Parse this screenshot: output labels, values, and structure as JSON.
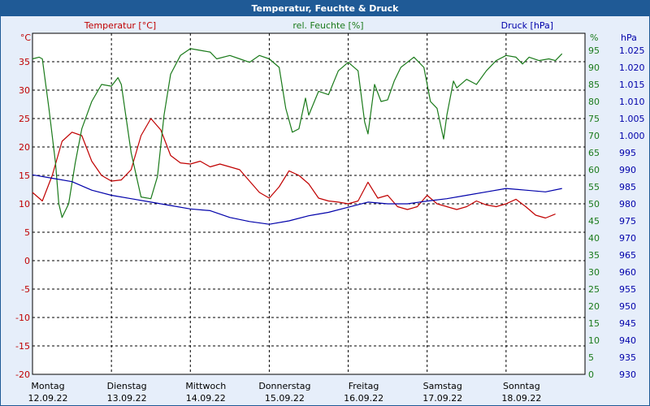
{
  "title": "Temperatur, Feuchte & Druck",
  "colors": {
    "temperature": "#c00000",
    "humidity": "#1a7a1a",
    "pressure": "#0000aa",
    "titlebar": "#1f5a96",
    "background": "#e6eefa"
  },
  "chart_data": {
    "type": "line",
    "title": "Temperatur, Feuchte & Druck",
    "grid": true,
    "x": {
      "range": [
        "12.09.22 00:00",
        "19.09.22 00:00"
      ],
      "days": [
        {
          "weekday": "Montag",
          "date": "12.09.22"
        },
        {
          "weekday": "Dienstag",
          "date": "13.09.22"
        },
        {
          "weekday": "Mittwoch",
          "date": "14.09.22"
        },
        {
          "weekday": "Donnerstag",
          "date": "15.09.22"
        },
        {
          "weekday": "Freitag",
          "date": "16.09.22"
        },
        {
          "weekday": "Samstag",
          "date": "17.09.22"
        },
        {
          "weekday": "Sonntag",
          "date": "18.09.22"
        }
      ]
    },
    "axes": {
      "temperature": {
        "label": "Temperatur [°C]",
        "unit": "°C",
        "range": [
          -20,
          40
        ],
        "ticks": [
          "-20",
          "-15",
          "-10",
          "-5",
          "0",
          "5",
          "10",
          "15",
          "20",
          "25",
          "30",
          "35"
        ]
      },
      "humidity": {
        "label": "rel. Feuchte [%]",
        "unit": "%",
        "range": [
          0,
          100
        ],
        "ticks": [
          "0",
          "5",
          "10",
          "15",
          "20",
          "25",
          "30",
          "35",
          "40",
          "45",
          "50",
          "55",
          "60",
          "65",
          "70",
          "75",
          "80",
          "85",
          "90",
          "95"
        ]
      },
      "pressure": {
        "label": "Druck [hPa]",
        "unit": "hPa",
        "range": [
          930,
          1030
        ],
        "ticks": [
          "930",
          "935",
          "940",
          "945",
          "950",
          "955",
          "960",
          "965",
          "970",
          "975",
          "980",
          "985",
          "990",
          "995",
          "1.000",
          "1.005",
          "1.010",
          "1.015",
          "1.020",
          "1.025"
        ]
      }
    },
    "series": [
      {
        "name": "Temperatur [°C]",
        "axis": "temperature",
        "points": [
          [
            "12.09.22 00:00",
            12.0
          ],
          [
            "12.09.22 03:00",
            10.5
          ],
          [
            "12.09.22 06:00",
            15.0
          ],
          [
            "12.09.22 09:00",
            21.0
          ],
          [
            "12.09.22 12:00",
            22.6
          ],
          [
            "12.09.22 15:00",
            22.0
          ],
          [
            "12.09.22 18:00",
            17.5
          ],
          [
            "12.09.22 21:00",
            15.0
          ],
          [
            "13.09.22 00:00",
            14.0
          ],
          [
            "13.09.22 03:00",
            14.2
          ],
          [
            "13.09.22 06:00",
            16.0
          ],
          [
            "13.09.22 09:00",
            22.0
          ],
          [
            "13.09.22 12:00",
            25.0
          ],
          [
            "13.09.22 15:00",
            23.0
          ],
          [
            "13.09.22 18:00",
            18.5
          ],
          [
            "13.09.22 21:00",
            17.2
          ],
          [
            "14.09.22 00:00",
            17.0
          ],
          [
            "14.09.22 03:00",
            17.5
          ],
          [
            "14.09.22 06:00",
            16.5
          ],
          [
            "14.09.22 09:00",
            17.0
          ],
          [
            "14.09.22 12:00",
            16.5
          ],
          [
            "14.09.22 15:00",
            16.0
          ],
          [
            "14.09.22 18:00",
            14.0
          ],
          [
            "14.09.22 21:00",
            12.0
          ],
          [
            "15.09.22 00:00",
            11.0
          ],
          [
            "15.09.22 03:00",
            13.0
          ],
          [
            "15.09.22 06:00",
            15.8
          ],
          [
            "15.09.22 09:00",
            15.0
          ],
          [
            "15.09.22 12:00",
            13.5
          ],
          [
            "15.09.22 15:00",
            11.0
          ],
          [
            "15.09.22 18:00",
            10.5
          ],
          [
            "15.09.22 21:00",
            10.3
          ],
          [
            "16.09.22 00:00",
            10.0
          ],
          [
            "16.09.22 03:00",
            10.5
          ],
          [
            "16.09.22 06:00",
            13.8
          ],
          [
            "16.09.22 09:00",
            11.0
          ],
          [
            "16.09.22 12:00",
            11.5
          ],
          [
            "16.09.22 15:00",
            9.5
          ],
          [
            "16.09.22 18:00",
            9.0
          ],
          [
            "16.09.22 21:00",
            9.5
          ],
          [
            "17.09.22 00:00",
            11.5
          ],
          [
            "17.09.22 03:00",
            10.0
          ],
          [
            "17.09.22 06:00",
            9.5
          ],
          [
            "17.09.22 09:00",
            9.0
          ],
          [
            "17.09.22 12:00",
            9.5
          ],
          [
            "17.09.22 15:00",
            10.5
          ],
          [
            "17.09.22 18:00",
            9.8
          ],
          [
            "17.09.22 21:00",
            9.5
          ],
          [
            "18.09.22 00:00",
            10.0
          ],
          [
            "18.09.22 03:00",
            10.8
          ],
          [
            "18.09.22 06:00",
            9.5
          ],
          [
            "18.09.22 09:00",
            8.0
          ],
          [
            "18.09.22 12:00",
            7.5
          ],
          [
            "18.09.22 15:00",
            8.2
          ]
        ]
      },
      {
        "name": "rel. Feuchte [%]",
        "axis": "humidity",
        "points": [
          [
            "12.09.22 00:00",
            92.5
          ],
          [
            "12.09.22 02:00",
            93.0
          ],
          [
            "12.09.22 03:00",
            92.5
          ],
          [
            "12.09.22 05:00",
            78.0
          ],
          [
            "12.09.22 07:00",
            62.0
          ],
          [
            "12.09.22 08:00",
            50.0
          ],
          [
            "12.09.22 09:00",
            46.0
          ],
          [
            "12.09.22 11:00",
            50.0
          ],
          [
            "12.09.22 13:00",
            62.0
          ],
          [
            "12.09.22 15:00",
            72.0
          ],
          [
            "12.09.22 18:00",
            80.0
          ],
          [
            "12.09.22 21:00",
            85.0
          ],
          [
            "13.09.22 00:00",
            84.5
          ],
          [
            "13.09.22 02:00",
            87.0
          ],
          [
            "13.09.22 03:00",
            85.0
          ],
          [
            "13.09.22 06:00",
            65.0
          ],
          [
            "13.09.22 09:00",
            52.0
          ],
          [
            "13.09.22 12:00",
            51.5
          ],
          [
            "13.09.22 14:00",
            58.0
          ],
          [
            "13.09.22 16:00",
            76.0
          ],
          [
            "13.09.22 18:00",
            88.0
          ],
          [
            "13.09.22 21:00",
            93.5
          ],
          [
            "14.09.22 00:00",
            95.5
          ],
          [
            "14.09.22 03:00",
            95.0
          ],
          [
            "14.09.22 06:00",
            94.5
          ],
          [
            "14.09.22 08:00",
            92.5
          ],
          [
            "14.09.22 12:00",
            93.5
          ],
          [
            "14.09.22 15:00",
            92.5
          ],
          [
            "14.09.22 18:00",
            91.5
          ],
          [
            "14.09.22 21:00",
            93.5
          ],
          [
            "15.09.22 00:00",
            92.5
          ],
          [
            "15.09.22 03:00",
            90.0
          ],
          [
            "15.09.22 05:00",
            78.0
          ],
          [
            "15.09.22 07:00",
            71.0
          ],
          [
            "15.09.22 09:00",
            72.0
          ],
          [
            "15.09.22 11:00",
            81.0
          ],
          [
            "15.09.22 12:00",
            76.0
          ],
          [
            "15.09.22 15:00",
            83.0
          ],
          [
            "15.09.22 18:00",
            82.0
          ],
          [
            "15.09.22 21:00",
            89.0
          ],
          [
            "16.09.22 00:00",
            91.5
          ],
          [
            "16.09.22 03:00",
            89.0
          ],
          [
            "16.09.22 05:00",
            74.0
          ],
          [
            "16.09.22 06:00",
            70.5
          ],
          [
            "16.09.22 08:00",
            85.0
          ],
          [
            "16.09.22 10:00",
            80.0
          ],
          [
            "16.09.22 12:00",
            80.5
          ],
          [
            "16.09.22 14:00",
            86.0
          ],
          [
            "16.09.22 16:00",
            90.0
          ],
          [
            "16.09.22 20:00",
            93.0
          ],
          [
            "16.09.22 23:00",
            90.0
          ],
          [
            "17.09.22 01:00",
            80.0
          ],
          [
            "17.09.22 03:00",
            78.0
          ],
          [
            "17.09.22 05:00",
            69.0
          ],
          [
            "17.09.22 06:00",
            76.0
          ],
          [
            "17.09.22 08:00",
            86.0
          ],
          [
            "17.09.22 09:00",
            84.0
          ],
          [
            "17.09.22 12:00",
            86.5
          ],
          [
            "17.09.22 15:00",
            85.0
          ],
          [
            "17.09.22 18:00",
            89.0
          ],
          [
            "17.09.22 21:00",
            92.0
          ],
          [
            "18.09.22 00:00",
            93.5
          ],
          [
            "18.09.22 03:00",
            93.0
          ],
          [
            "18.09.22 05:00",
            91.0
          ],
          [
            "18.09.22 07:00",
            93.0
          ],
          [
            "18.09.22 10:00",
            92.0
          ],
          [
            "18.09.22 13:00",
            92.5
          ],
          [
            "18.09.22 15:00",
            92.0
          ],
          [
            "18.09.22 17:00",
            94.0
          ]
        ]
      },
      {
        "name": "Druck [hPa]",
        "axis": "pressure",
        "points": [
          [
            "12.09.22 00:00",
            988.5
          ],
          [
            "12.09.22 06:00",
            987.5
          ],
          [
            "12.09.22 12:00",
            986.5
          ],
          [
            "12.09.22 18:00",
            984.0
          ],
          [
            "13.09.22 00:00",
            982.5
          ],
          [
            "13.09.22 06:00",
            981.5
          ],
          [
            "13.09.22 12:00",
            980.5
          ],
          [
            "13.09.22 18:00",
            979.5
          ],
          [
            "14.09.22 00:00",
            978.5
          ],
          [
            "14.09.22 06:00",
            978.0
          ],
          [
            "14.09.22 12:00",
            976.0
          ],
          [
            "14.09.22 18:00",
            974.8
          ],
          [
            "15.09.22 00:00",
            974.0
          ],
          [
            "15.09.22 06:00",
            975.0
          ],
          [
            "15.09.22 12:00",
            976.5
          ],
          [
            "15.09.22 18:00",
            977.5
          ],
          [
            "16.09.22 00:00",
            979.0
          ],
          [
            "16.09.22 06:00",
            980.5
          ],
          [
            "16.09.22 12:00",
            980.0
          ],
          [
            "16.09.22 18:00",
            980.0
          ],
          [
            "17.09.22 00:00",
            980.8
          ],
          [
            "17.09.22 06:00",
            981.5
          ],
          [
            "17.09.22 12:00",
            982.5
          ],
          [
            "17.09.22 18:00",
            983.5
          ],
          [
            "18.09.22 00:00",
            984.5
          ],
          [
            "18.09.22 06:00",
            984.0
          ],
          [
            "18.09.22 12:00",
            983.5
          ],
          [
            "18.09.22 17:00",
            984.5
          ]
        ]
      }
    ]
  }
}
